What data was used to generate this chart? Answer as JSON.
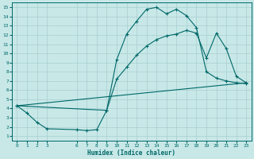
{
  "xlabel": "Humidex (Indice chaleur)",
  "bg_color": "#c8e8e8",
  "grid_color": "#a8cece",
  "line_color": "#006868",
  "xlim": [
    -0.5,
    23.5
  ],
  "ylim": [
    0.5,
    15.5
  ],
  "xticks": [
    0,
    1,
    2,
    3,
    6,
    7,
    8,
    9,
    10,
    11,
    12,
    13,
    14,
    15,
    16,
    17,
    18,
    19,
    20,
    21,
    22,
    23
  ],
  "yticks": [
    1,
    2,
    3,
    4,
    5,
    6,
    7,
    8,
    9,
    10,
    11,
    12,
    13,
    14,
    15
  ],
  "line1_x": [
    0,
    1,
    2,
    3,
    6,
    7,
    8,
    9,
    10,
    11,
    12,
    13,
    14,
    15,
    16,
    17,
    18,
    19,
    20,
    21,
    22,
    23
  ],
  "line1_y": [
    4.3,
    3.5,
    2.5,
    1.8,
    1.7,
    1.6,
    1.7,
    3.8,
    9.3,
    12.1,
    13.5,
    14.8,
    15.0,
    14.3,
    14.8,
    14.1,
    12.8,
    8.0,
    7.3,
    7.0,
    6.8,
    6.7
  ],
  "line2_x": [
    0,
    9,
    10,
    11,
    12,
    13,
    14,
    15,
    16,
    17,
    18,
    19,
    20,
    21,
    22,
    23
  ],
  "line2_y": [
    4.3,
    3.8,
    7.2,
    8.5,
    9.8,
    10.8,
    11.5,
    11.9,
    12.1,
    12.5,
    12.2,
    9.5,
    12.2,
    10.5,
    7.5,
    6.8
  ],
  "line3_x": [
    0,
    23
  ],
  "line3_y": [
    4.3,
    6.8
  ]
}
